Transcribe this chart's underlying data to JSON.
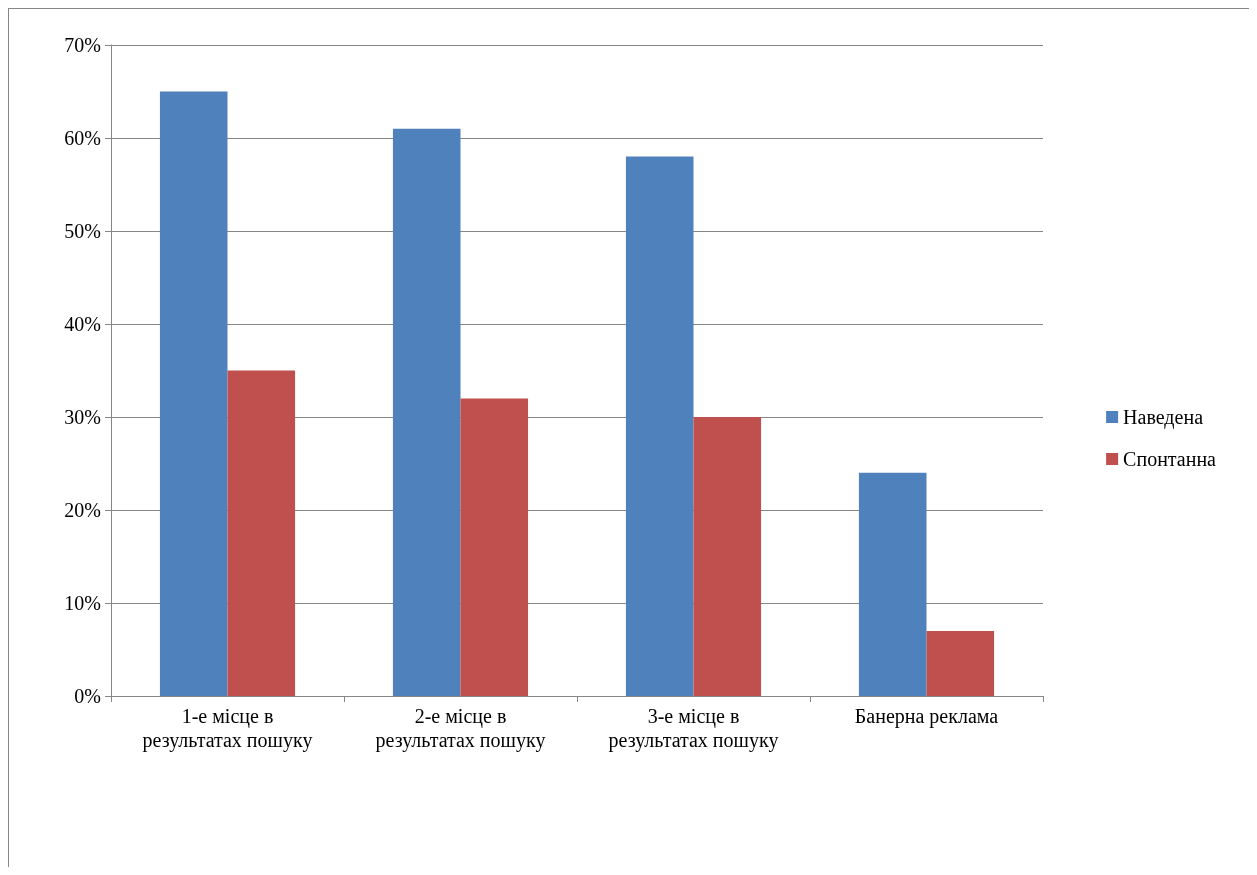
{
  "chart_data": {
    "type": "bar",
    "categories": [
      "1-е місце в\nрезультатах пошуку",
      "2-е місце в\nрезультатах пошуку",
      "3-е місце в\nрезультатах пошуку",
      "Банерна реклама"
    ],
    "series": [
      {
        "name": "Наведена",
        "color": "#4f81bd",
        "values": [
          65,
          61,
          58,
          24
        ]
      },
      {
        "name": "Спонтанна",
        "color": "#c0504d",
        "values": [
          35,
          32,
          30,
          7
        ]
      }
    ],
    "ylim": [
      0,
      70
    ],
    "yticks": [
      {
        "value": 0,
        "label": "0%"
      },
      {
        "value": 10,
        "label": "10%"
      },
      {
        "value": 20,
        "label": "20%"
      },
      {
        "value": 30,
        "label": "30%"
      },
      {
        "value": 40,
        "label": "40%"
      },
      {
        "value": 50,
        "label": "50%"
      },
      {
        "value": 60,
        "label": "60%"
      },
      {
        "value": 70,
        "label": "70%"
      }
    ],
    "grid": "y",
    "legend": "right"
  }
}
